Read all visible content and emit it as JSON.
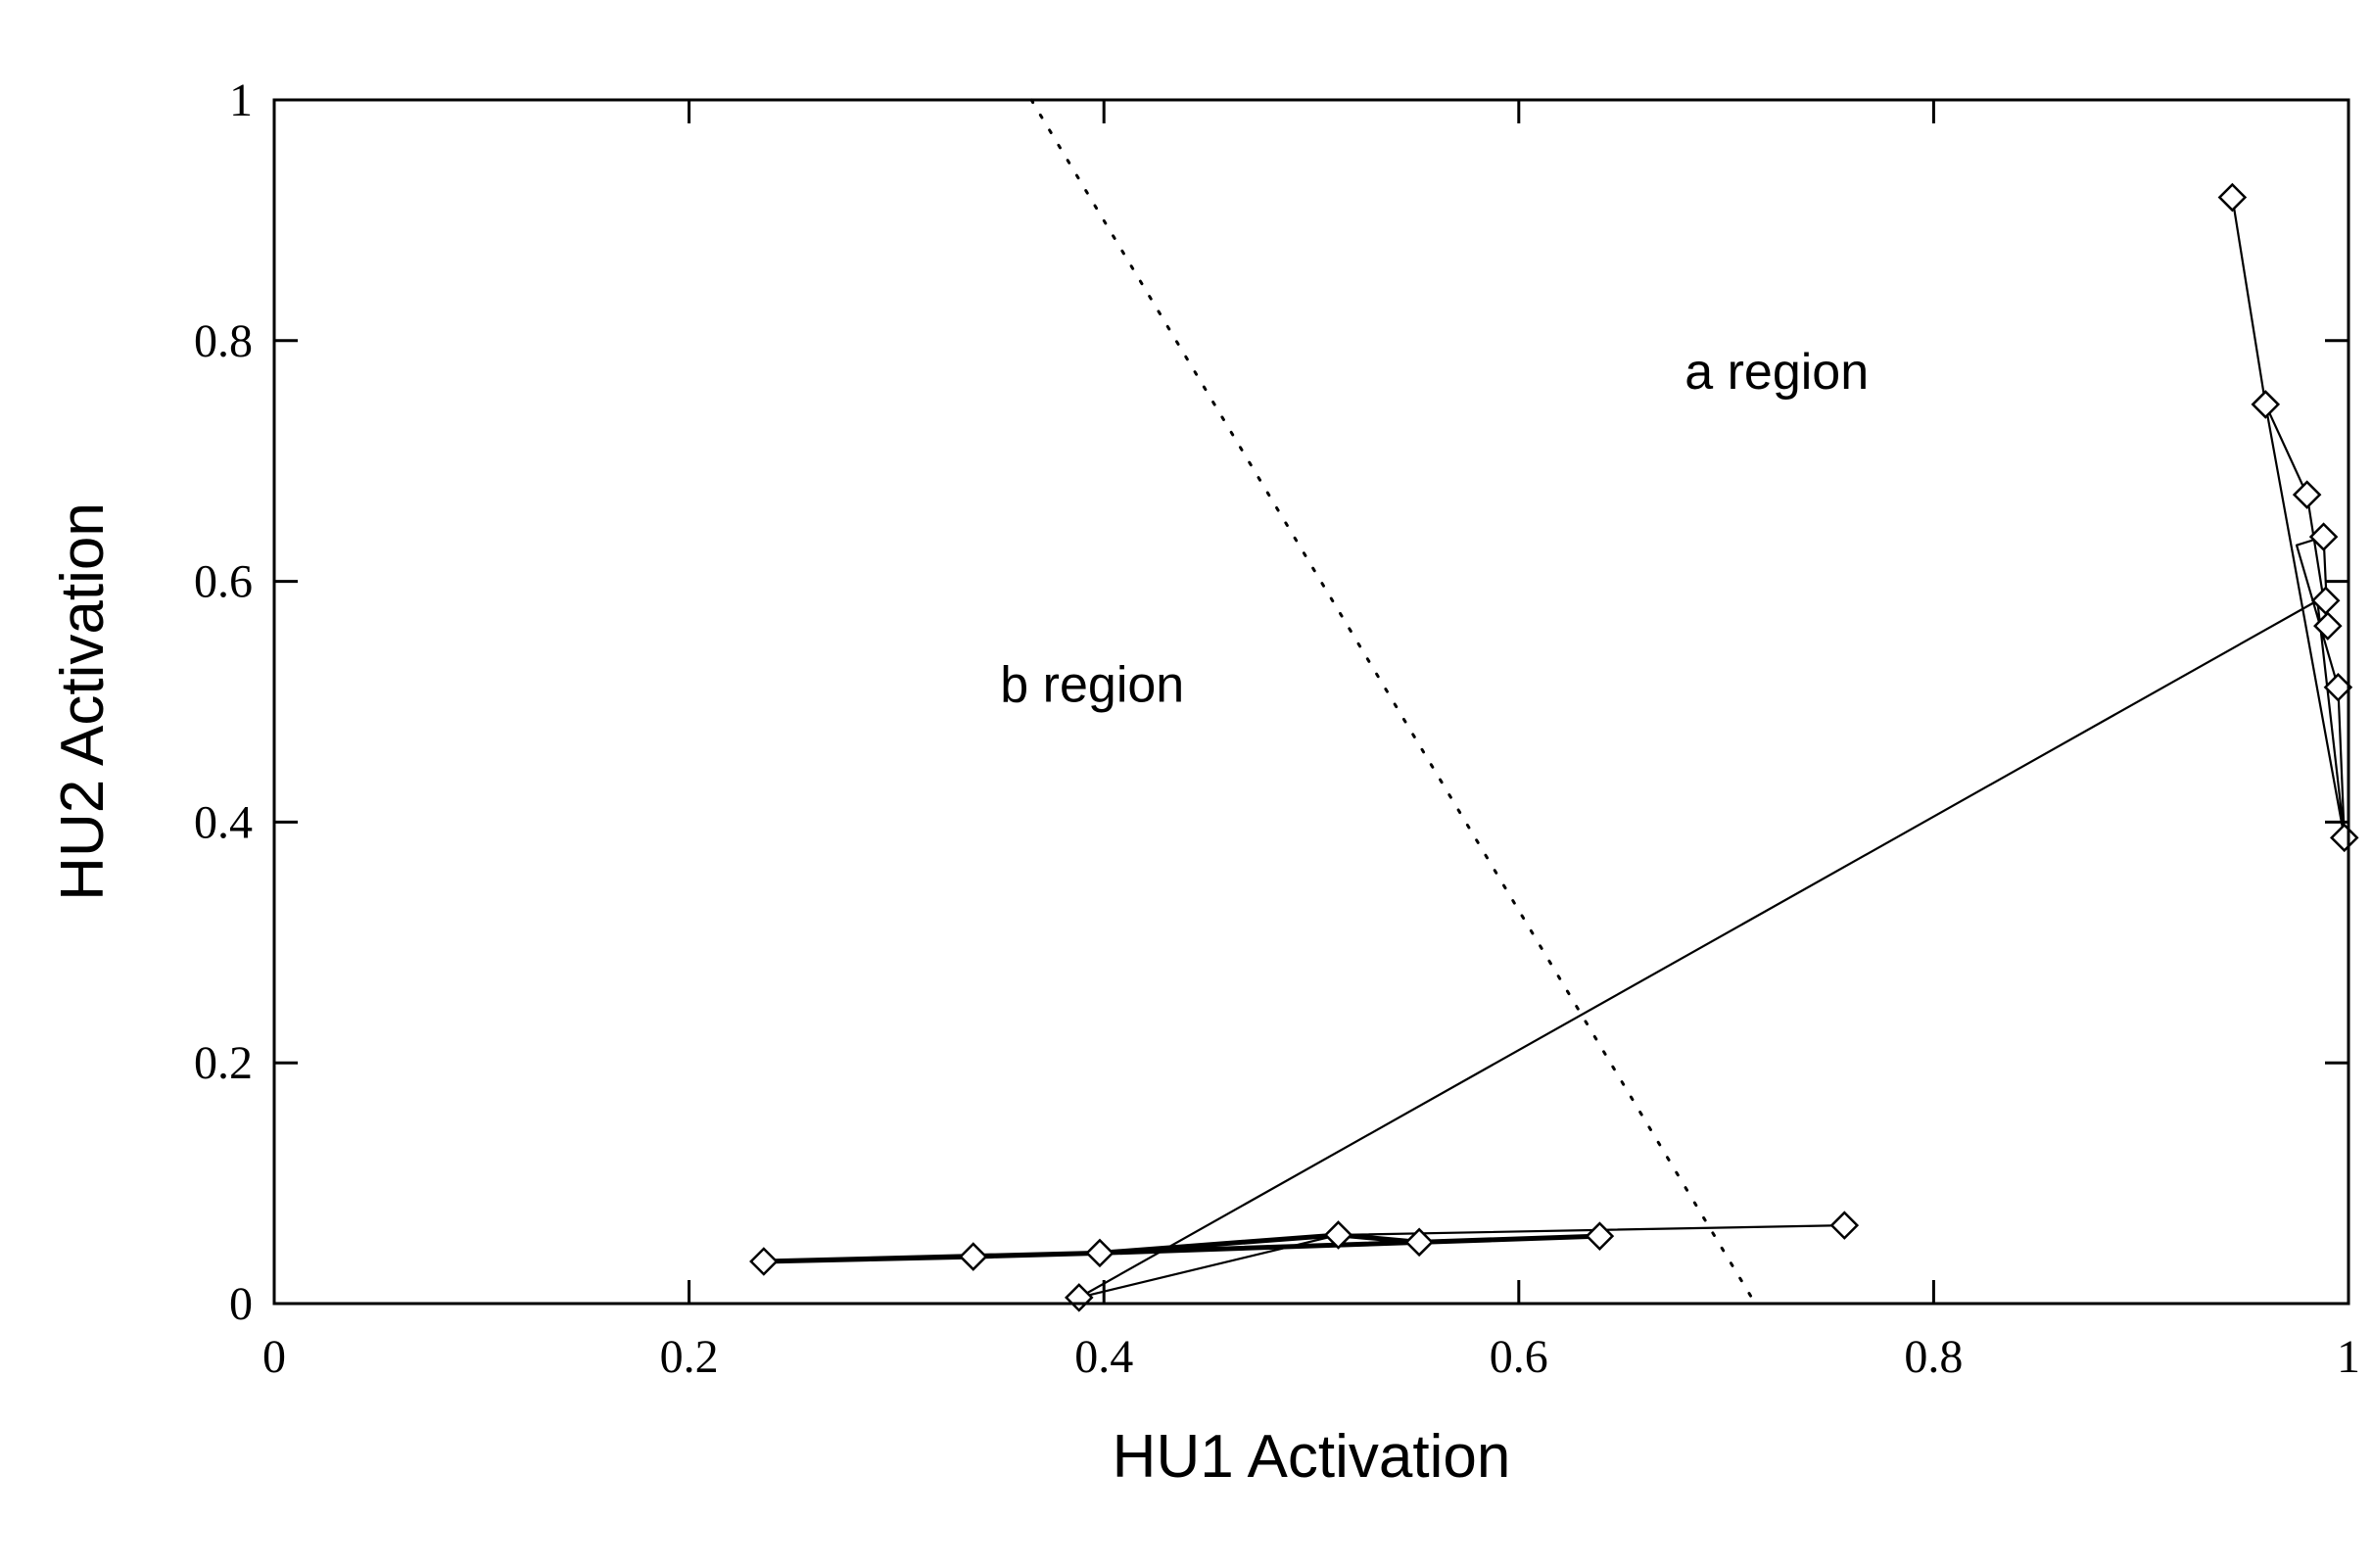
{
  "chart_data": {
    "type": "line",
    "xlabel": "HU1 Activation",
    "ylabel": "HU2 Activation",
    "xlim": [
      0,
      1
    ],
    "ylim": [
      0,
      1
    ],
    "x_ticks": [
      "0",
      "0.2",
      "0.4",
      "0.6",
      "0.8",
      "1"
    ],
    "y_ticks": [
      "0",
      "0.2",
      "0.4",
      "0.6",
      "0.8",
      "1"
    ],
    "grid": false,
    "annotations": [
      {
        "text": "a region",
        "x": 0.68,
        "y": 0.76
      },
      {
        "text": "b region",
        "x": 0.35,
        "y": 0.5
      }
    ],
    "boundary": {
      "style": "dotted",
      "points": [
        [
          0.365,
          1.0
        ],
        [
          0.714,
          0.0
        ]
      ]
    },
    "series": [
      {
        "style": "thick",
        "points": [
          [
            0.236,
            0.035
          ],
          [
            0.337,
            0.039
          ],
          [
            0.398,
            0.042
          ],
          [
            0.513,
            0.057
          ],
          [
            0.552,
            0.051
          ],
          [
            0.639,
            0.056
          ],
          [
            0.398,
            0.042
          ],
          [
            0.236,
            0.035
          ]
        ]
      },
      {
        "style": "thin",
        "points": [
          [
            0.388,
            0.005
          ],
          [
            0.513,
            0.057
          ],
          [
            0.757,
            0.065
          ]
        ]
      },
      {
        "style": "thin",
        "points": [
          [
            0.388,
            0.005
          ],
          [
            0.985,
            0.584
          ],
          [
            0.998,
            0.387
          ],
          [
            0.96,
            0.747
          ],
          [
            0.944,
            0.919
          ],
          [
            0.96,
            0.747
          ],
          [
            0.98,
            0.672
          ],
          [
            0.99,
            0.563
          ],
          [
            0.988,
            0.637
          ],
          [
            0.975,
            0.63
          ],
          [
            0.995,
            0.512
          ],
          [
            0.998,
            0.387
          ]
        ]
      }
    ],
    "markers": [
      [
        0.236,
        0.035
      ],
      [
        0.337,
        0.039
      ],
      [
        0.398,
        0.042
      ],
      [
        0.388,
        0.005
      ],
      [
        0.513,
        0.057
      ],
      [
        0.552,
        0.051
      ],
      [
        0.639,
        0.056
      ],
      [
        0.757,
        0.065
      ],
      [
        0.944,
        0.919
      ],
      [
        0.96,
        0.747
      ],
      [
        0.98,
        0.672
      ],
      [
        0.988,
        0.637
      ],
      [
        0.989,
        0.584
      ],
      [
        0.99,
        0.563
      ],
      [
        0.995,
        0.512
      ],
      [
        0.998,
        0.387
      ]
    ]
  }
}
